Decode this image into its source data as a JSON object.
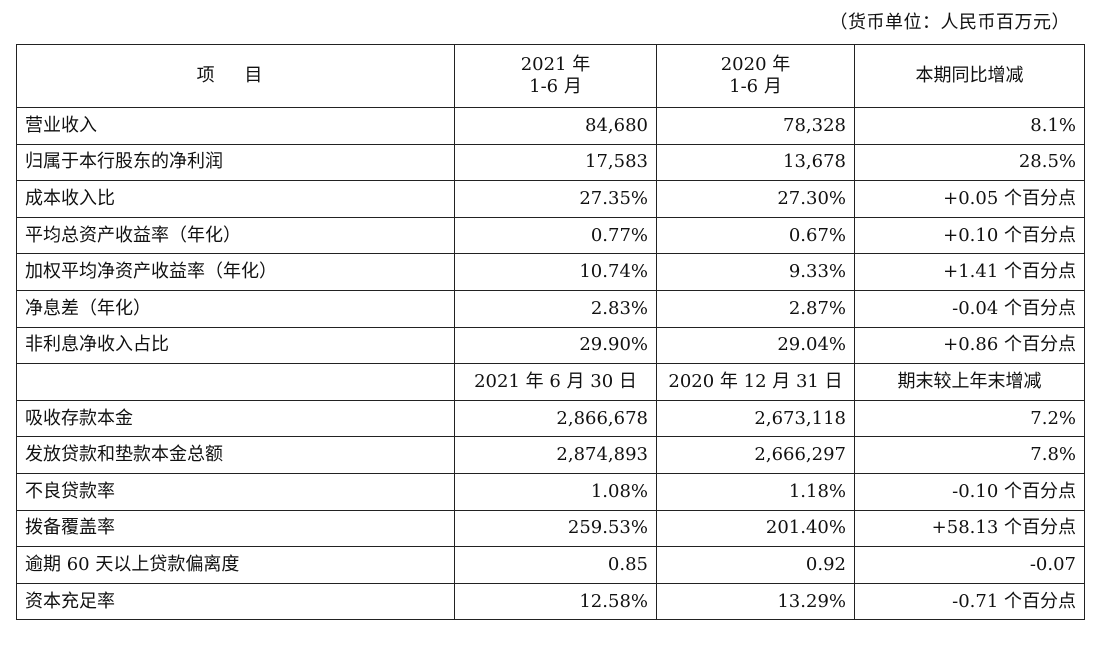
{
  "unit_note": "（货币单位：人民币百万元）",
  "header": {
    "item": "项 目",
    "col1_line1": "2021 年",
    "col1_line2": "1-6 月",
    "col2_line1": "2020 年",
    "col2_line2": "1-6 月",
    "col3": "本期同比增减"
  },
  "section1_rows": [
    {
      "label": "营业收入",
      "v2021": "84,680",
      "v2020": "78,328",
      "change": "8.1%"
    },
    {
      "label": "归属于本行股东的净利润",
      "v2021": "17,583",
      "v2020": "13,678",
      "change": "28.5%"
    },
    {
      "label": "成本收入比",
      "v2021": "27.35%",
      "v2020": "27.30%",
      "change": "+0.05 个百分点"
    },
    {
      "label": "平均总资产收益率（年化）",
      "v2021": "0.77%",
      "v2020": "0.67%",
      "change": "+0.10 个百分点"
    },
    {
      "label": "加权平均净资产收益率（年化）",
      "v2021": "10.74%",
      "v2020": "9.33%",
      "change": "+1.41 个百分点"
    },
    {
      "label": "净息差（年化）",
      "v2021": "2.83%",
      "v2020": "2.87%",
      "change": "-0.04 个百分点"
    },
    {
      "label": "非利息净收入占比",
      "v2021": "29.90%",
      "v2020": "29.04%",
      "change": "+0.86 个百分点"
    }
  ],
  "subheader": {
    "item": "",
    "col1": "2021 年 6 月 30 日",
    "col2": "2020 年 12 月 31 日",
    "col3": "期末较上年末增减"
  },
  "section2_rows": [
    {
      "label": "吸收存款本金",
      "v2021": "2,866,678",
      "v2020": "2,673,118",
      "change": "7.2%"
    },
    {
      "label": "发放贷款和垫款本金总额",
      "v2021": "2,874,893",
      "v2020": "2,666,297",
      "change": "7.8%"
    },
    {
      "label": "不良贷款率",
      "v2021": "1.08%",
      "v2020": "1.18%",
      "change": "-0.10 个百分点"
    },
    {
      "label": "拨备覆盖率",
      "v2021": "259.53%",
      "v2020": "201.40%",
      "change": "+58.13 个百分点"
    },
    {
      "label": "逾期 60 天以上贷款偏离度",
      "v2021": "0.85",
      "v2020": "0.92",
      "change": "-0.07"
    },
    {
      "label": "资本充足率",
      "v2021": "12.58%",
      "v2020": "13.29%",
      "change": "-0.71 个百分点"
    }
  ]
}
